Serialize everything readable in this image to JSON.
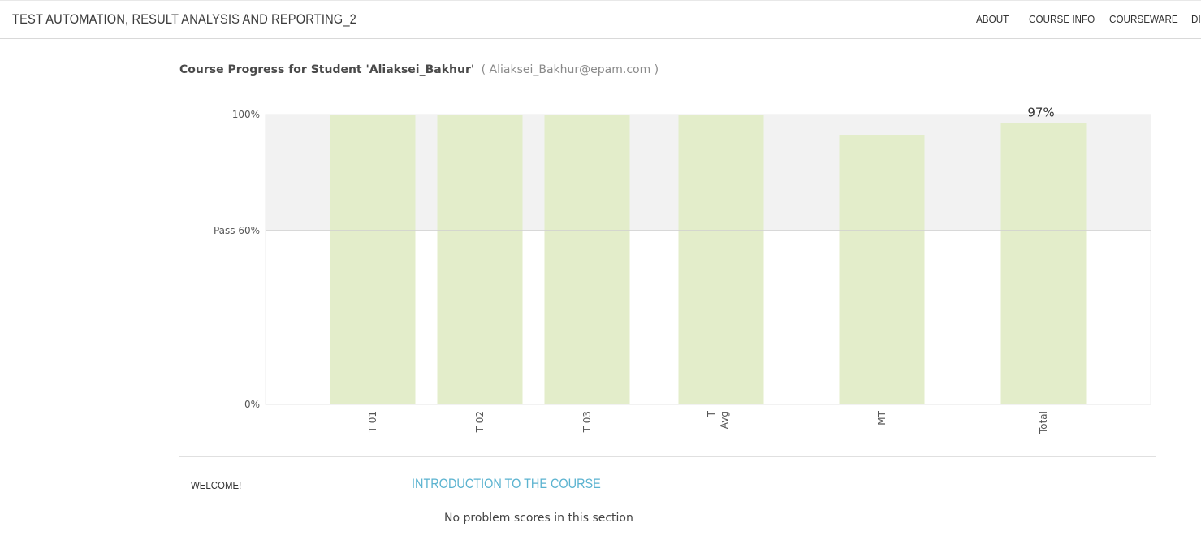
{
  "header": {
    "course_title": "TEST AUTOMATION, RESULT ANALYSIS AND REPORTING_2",
    "nav": [
      {
        "label": "ABOUT"
      },
      {
        "label": "COURSE INFO"
      },
      {
        "label": "COURSEWARE"
      },
      {
        "label": "DI"
      }
    ]
  },
  "progress": {
    "heading_prefix": "Course Progress for Student 'Aliaksei_Bakhur'",
    "email_text": "( Aliaksei_Bakhur@epam.com )"
  },
  "colors": {
    "bar_fill": "#e3edca",
    "pass_band": "#f2f2f2",
    "link_blue": "#5bb3d0"
  },
  "chart_data": {
    "type": "bar",
    "categories": [
      "T 01",
      "T 02",
      "T 03",
      "T Avg",
      "MT",
      "Total"
    ],
    "values": [
      100,
      100,
      100,
      100,
      93,
      97
    ],
    "ylim": [
      0,
      100
    ],
    "yticks": [
      {
        "value": 0,
        "label": "0%"
      },
      {
        "value": 60,
        "label": "Pass 60%"
      },
      {
        "value": 100,
        "label": "100%"
      }
    ],
    "pass_threshold": 60,
    "data_labels": [
      {
        "category": "Total",
        "text": "97%"
      }
    ]
  },
  "sections": [
    {
      "name": "WELCOME!",
      "subsections": [
        {
          "title": "INTRODUCTION TO THE COURSE",
          "note": "No problem scores in this section"
        }
      ]
    }
  ]
}
